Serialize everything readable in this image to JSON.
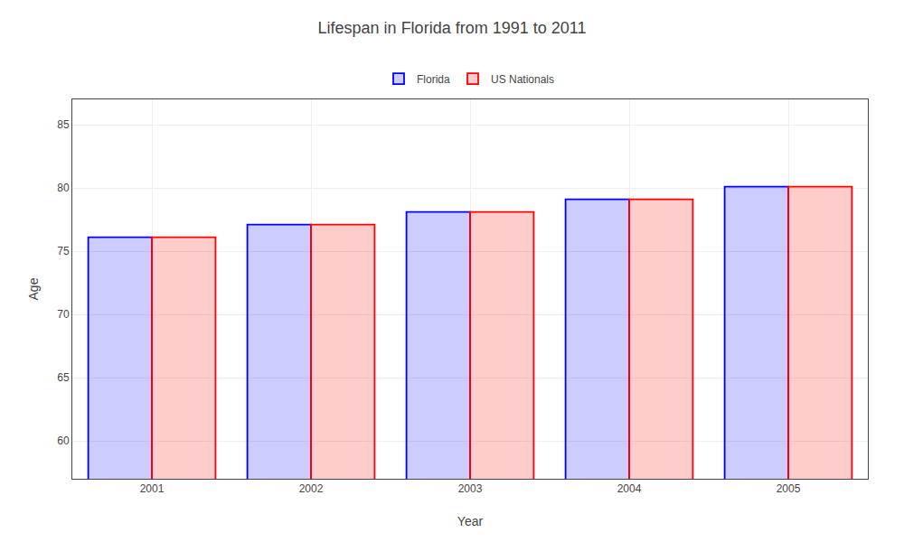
{
  "chart_data": {
    "type": "bar",
    "title": "Lifespan in Florida from 1991 to 2011",
    "xlabel": "Year",
    "ylabel": "Age",
    "categories": [
      "2001",
      "2002",
      "2003",
      "2004",
      "2005"
    ],
    "series": [
      {
        "name": "Florida",
        "color": "#0000ff",
        "values": [
          76.1,
          77.1,
          78.1,
          79.1,
          80.1
        ]
      },
      {
        "name": "US Nationals",
        "color": "#ff0000",
        "values": [
          76.1,
          77.1,
          78.1,
          79.1,
          80.1
        ]
      }
    ],
    "ylim": [
      57,
      87
    ],
    "yticks": [
      60,
      65,
      70,
      75,
      80,
      85
    ],
    "grid": true,
    "legend": "upper center"
  }
}
